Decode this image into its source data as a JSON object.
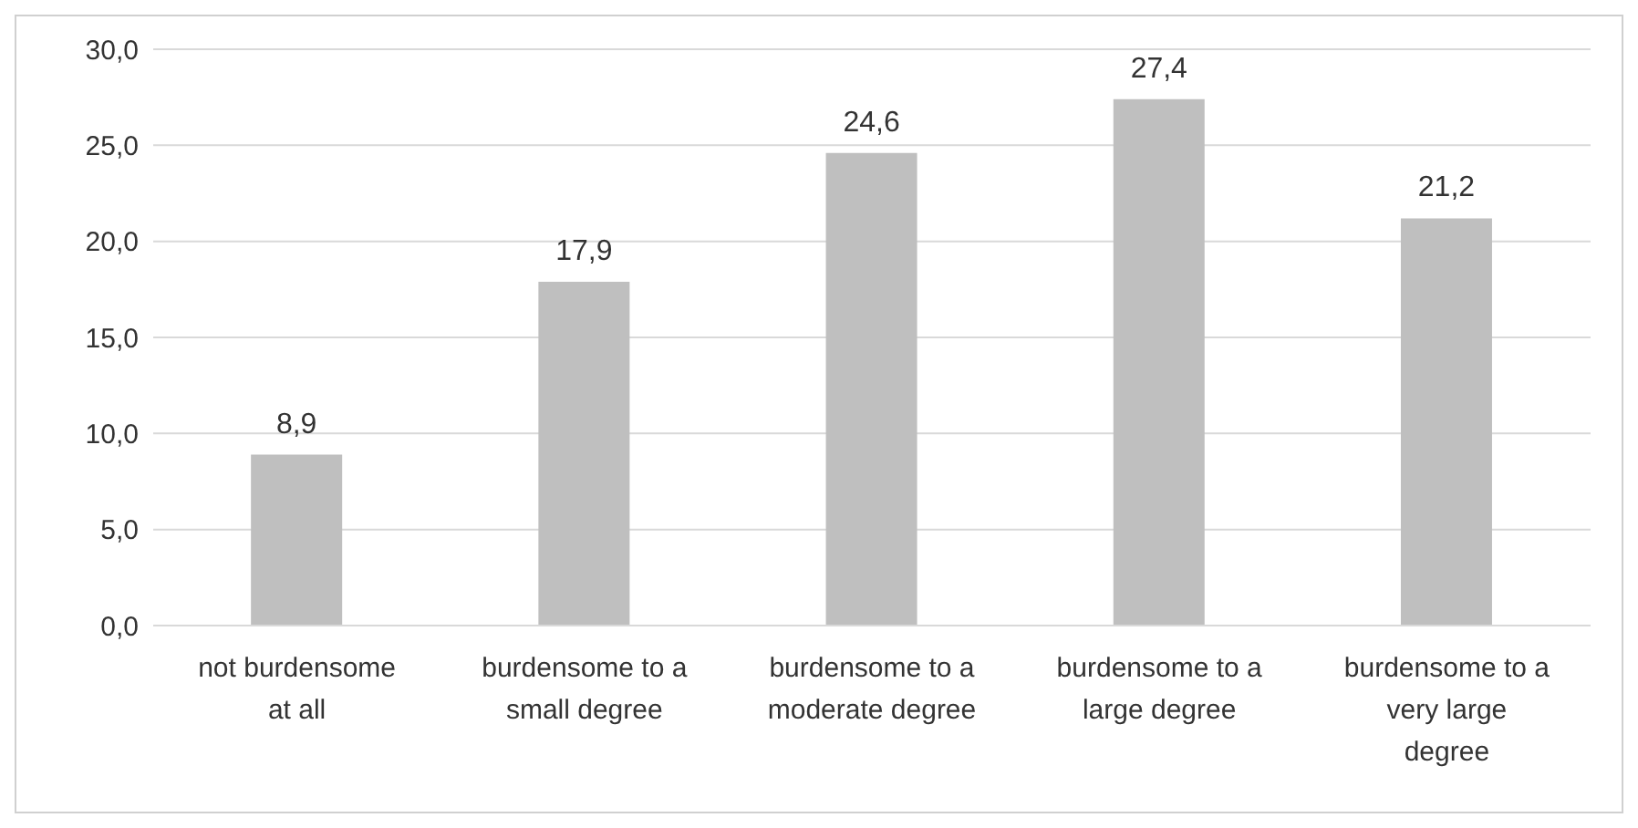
{
  "chart_data": {
    "type": "bar",
    "categories": [
      "not burdensome at all",
      "burdensome to a small degree",
      "burdensome to a moderate degree",
      "burdensome to a large degree",
      "burdensome to a very large degree"
    ],
    "values": [
      8.9,
      17.9,
      24.6,
      27.4,
      21.2
    ],
    "value_labels": [
      "8,9",
      "17,9",
      "24,6",
      "27,4",
      "21,2"
    ],
    "color": "#bfbfbf",
    "ylim": [
      0,
      30
    ],
    "yticks": [
      {
        "value": 0,
        "label": "0,0"
      },
      {
        "value": 5,
        "label": "5,0"
      },
      {
        "value": 10,
        "label": "10,0"
      },
      {
        "value": 15,
        "label": "15,0"
      },
      {
        "value": 20,
        "label": "20,0"
      },
      {
        "value": 25,
        "label": "25,0"
      },
      {
        "value": 30,
        "label": "30,0"
      }
    ],
    "grid": "y",
    "legend": false
  }
}
